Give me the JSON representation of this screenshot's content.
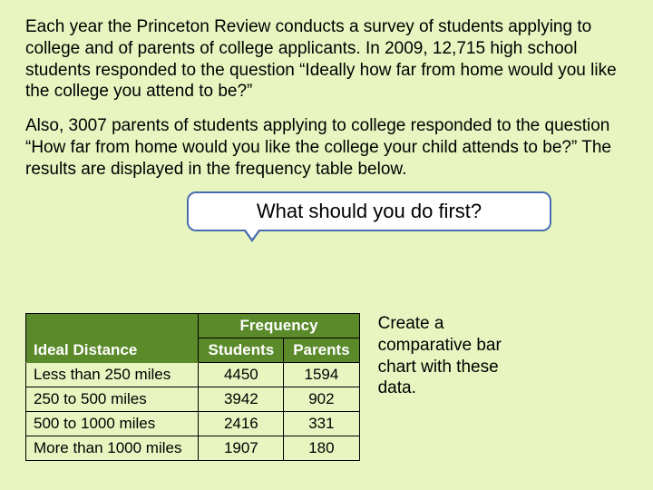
{
  "paragraph1": "Each year the Princeton Review conducts a survey of students applying to college and of parents of college applicants. In 2009, 12,715 high school students responded to the question “Ideally how far from home would you like the college you attend to be?”",
  "paragraph2": "Also, 3007 parents of students applying to college responded to the question “How far from home would you like the college your child attends to be?” The results are displayed in the frequency table below.",
  "callout": "What should you do first?",
  "table": {
    "freq_header": "Frequency",
    "row_header": "Ideal Distance",
    "col1": "Students",
    "col2": "Parents",
    "rows": [
      {
        "label": "Less than 250 miles",
        "students": "4450",
        "parents": "1594"
      },
      {
        "label": "250 to 500 miles",
        "students": "3942",
        "parents": "902"
      },
      {
        "label": "500 to 1000 miles",
        "students": "2416",
        "parents": "331"
      },
      {
        "label": "More than 1000 miles",
        "students": "1907",
        "parents": "180"
      }
    ],
    "header_bg": "#5a8a2a",
    "header_text_color": "#ffffff"
  },
  "sidenote": "Create a comparative bar chart with these data.",
  "colors": {
    "background": "#e8f5c0",
    "callout_border": "#4a6db0",
    "callout_bg": "#ffffff",
    "text": "#000000"
  }
}
